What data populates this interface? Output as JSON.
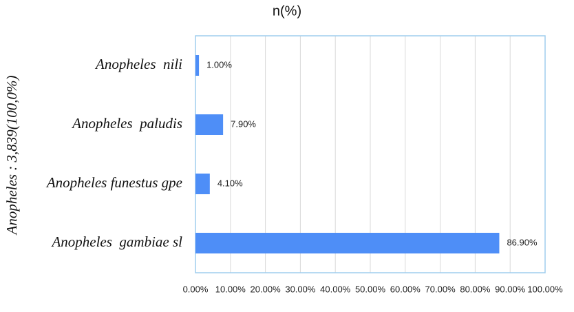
{
  "chart_data": {
    "type": "bar",
    "orientation": "horizontal",
    "title": "n(%)",
    "y_label": "Anopheles : 3,839(100,0%)",
    "categories": [
      "Anopheles  nili",
      "Anopheles  paludis",
      "Anopheles funestus gpe",
      "Anopheles  gambiae sl"
    ],
    "values": [
      1.0,
      7.9,
      4.1,
      86.9
    ],
    "value_labels": [
      "1.00%",
      "7.90%",
      "4.10%",
      "86.90%"
    ],
    "color": "#4e8ef7",
    "xlim": [
      0,
      100
    ],
    "xticks": [
      {
        "value": 0,
        "label": "0.00%"
      },
      {
        "value": 10,
        "label": "10.00%"
      },
      {
        "value": 20,
        "label": "20.00%"
      },
      {
        "value": 30,
        "label": "30.00%"
      },
      {
        "value": 40,
        "label": "40.00%"
      },
      {
        "value": 50,
        "label": "50.00%"
      },
      {
        "value": 60,
        "label": "60.00%"
      },
      {
        "value": 70,
        "label": "70.00%"
      },
      {
        "value": 80,
        "label": "80.00%"
      },
      {
        "value": 90,
        "label": "90.00%"
      },
      {
        "value": 100,
        "label": "100.00%"
      }
    ],
    "grid": true
  }
}
